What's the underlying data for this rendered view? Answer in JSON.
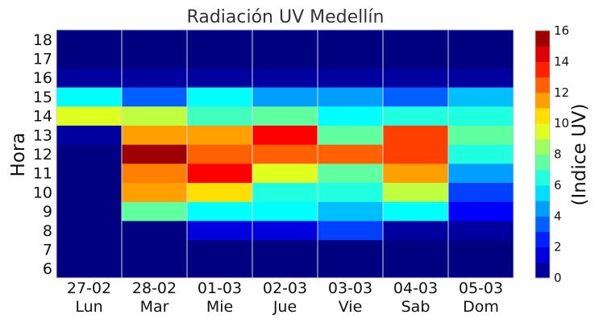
{
  "chart_data": {
    "type": "heatmap",
    "title": "Radiación UV Medellín",
    "ylabel": "Hora",
    "colorbar_label": "(Indice UV)",
    "colormap": "jet",
    "clim": [
      0,
      16
    ],
    "colorbar_ticks": [
      "0",
      "2",
      "4",
      "6",
      "8",
      "10",
      "12",
      "14",
      "16"
    ],
    "x_dates": [
      "27-02",
      "28-02",
      "01-03",
      "02-03",
      "03-03",
      "04-03",
      "05-03"
    ],
    "x_days": [
      "Lun",
      "Mar",
      "Mie",
      "Jue",
      "Vie",
      "Sab",
      "Dom"
    ],
    "hours": [
      "6",
      "7",
      "8",
      "9",
      "10",
      "11",
      "12",
      "13",
      "14",
      "15",
      "16",
      "17",
      "18"
    ],
    "values": [
      [
        0,
        0,
        0,
        0,
        0,
        0,
        0,
        0.5,
        9.5,
        6,
        0.5,
        0,
        0
      ],
      [
        0,
        0,
        0,
        7.5,
        11.5,
        12,
        15.5,
        11.5,
        9,
        3.5,
        0.5,
        0,
        0
      ],
      [
        0,
        0,
        1.5,
        6,
        10.5,
        14,
        12.5,
        11.5,
        7,
        6,
        0.5,
        0,
        0
      ],
      [
        0,
        0,
        1.5,
        6,
        6.5,
        9.5,
        12.5,
        14,
        7.5,
        4.5,
        0.5,
        0,
        0
      ],
      [
        0,
        0,
        3,
        5,
        6.5,
        7.5,
        12.5,
        7.5,
        6,
        4.5,
        0.5,
        0,
        0
      ],
      [
        0,
        0,
        0.5,
        6,
        9,
        11.5,
        13,
        13,
        6.5,
        3.5,
        0.5,
        0,
        0
      ],
      [
        0,
        0,
        0.5,
        2,
        3,
        4.5,
        6.5,
        7.5,
        6.5,
        5,
        0.5,
        0,
        0
      ]
    ]
  }
}
